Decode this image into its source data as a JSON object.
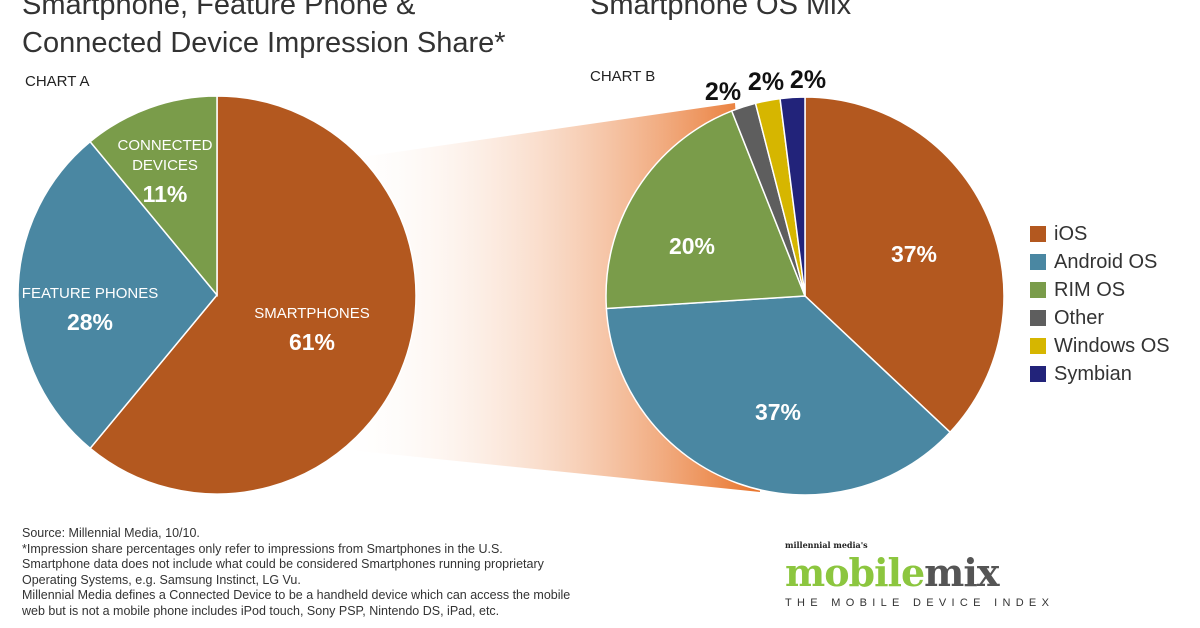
{
  "titles": {
    "chart_a_line1": "Smartphone, Feature Phone &",
    "chart_a_line2": "Connected Device Impression Share*",
    "chart_b": "Smartphone OS Mix"
  },
  "chart_data": [
    {
      "type": "pie",
      "label": "CHART A",
      "slices": [
        {
          "name": "SMARTPHONES",
          "value": 61,
          "label": "61%",
          "color": "#b3581f"
        },
        {
          "name": "FEATURE PHONES",
          "value": 28,
          "label": "28%",
          "color": "#4a87a2"
        },
        {
          "name": "CONNECTED DEVICES",
          "value": 11,
          "label": "11%",
          "color": "#7a9c4a"
        }
      ]
    },
    {
      "type": "pie",
      "label": "CHART B",
      "slices": [
        {
          "name": "iOS",
          "value": 37,
          "label": "37%",
          "color": "#b3581f"
        },
        {
          "name": "Android OS",
          "value": 37,
          "label": "37%",
          "color": "#4a87a2"
        },
        {
          "name": "RIM OS",
          "value": 20,
          "label": "20%",
          "color": "#7a9c4a"
        },
        {
          "name": "Other",
          "value": 2,
          "label": "2%",
          "color": "#5e5e5e"
        },
        {
          "name": "Windows OS",
          "value": 2,
          "label": "2%",
          "color": "#d6b600"
        },
        {
          "name": "Symbian",
          "value": 2,
          "label": "2%",
          "color": "#22237a"
        }
      ],
      "legend": "right"
    }
  ],
  "footnotes": [
    "Source: Millennial Media, 10/10.",
    "*Impression share percentages only refer to impressions from Smartphones in the U.S.",
    "Smartphone data does not include what could be considered Smartphones running proprietary",
    "Operating Systems, e.g. Samsung Instinct, LG Vu.",
    "Millennial Media defines a Connected Device  to be a  handheld device which can access the mobile",
    "web but is not a mobile phone includes iPod touch, Sony PSP, Nintendo DS, iPad, etc."
  ],
  "logo": {
    "prefix": "millennial media's",
    "word1": "mobile",
    "word2": "mix",
    "tagline": "THE MOBILE DEVICE INDEX"
  }
}
